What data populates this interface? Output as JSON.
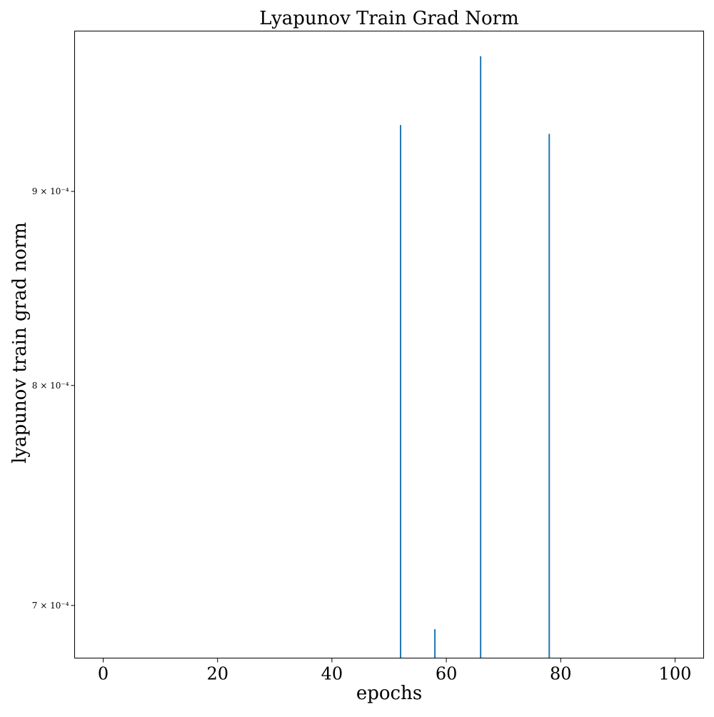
{
  "chart_data": {
    "type": "bar",
    "title": "Lyapunov Train Grad Norm",
    "xlabel": "epochs",
    "ylabel": "lyapunov train grad norm",
    "xlim": [
      -5,
      105
    ],
    "ylim": [
      0.000678,
      0.000992
    ],
    "yscale": "log",
    "xticks": [
      0,
      20,
      40,
      60,
      80,
      100
    ],
    "xtick_labels": [
      "0",
      "20",
      "40",
      "60",
      "80",
      "100"
    ],
    "yticks": [
      0.0007,
      0.0008,
      0.0009
    ],
    "ytick_labels": [
      "7 × 10⁻⁴",
      "8 × 10⁻⁴",
      "9 × 10⁻⁴"
    ],
    "grid": false,
    "color": "#1f77b4",
    "bars": [
      {
        "x": 52,
        "y": 0.000937
      },
      {
        "x": 58,
        "y": 0.00069
      },
      {
        "x": 66,
        "y": 0.000977
      },
      {
        "x": 78,
        "y": 0.000932
      }
    ]
  }
}
